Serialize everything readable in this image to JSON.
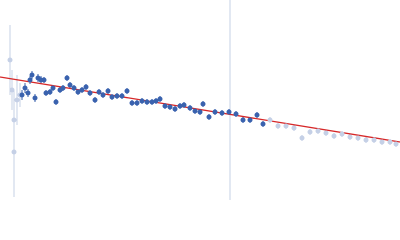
{
  "chart_data": {
    "type": "scatter",
    "xlim": [
      0,
      400
    ],
    "ylim": [
      0,
      200
    ],
    "series": [
      {
        "color": "#c5d0e6",
        "x": [
          10,
          12,
          14,
          14,
          17,
          20
        ],
        "values": [
          140,
          110,
          80,
          48,
          100,
          105
        ],
        "errors": [
          35,
          20,
          30,
          45,
          25,
          12
        ]
      },
      {
        "color": "#3a62ae",
        "x": [
          22,
          25,
          28,
          30,
          32,
          35,
          38,
          41,
          44,
          46,
          50,
          53,
          56,
          60,
          63,
          67,
          70,
          74,
          78,
          82,
          86,
          90,
          95,
          99,
          103,
          108,
          112,
          117,
          122,
          127,
          132,
          137,
          142,
          147,
          152,
          156,
          160,
          165,
          170,
          175,
          180,
          184,
          190,
          195,
          200,
          203,
          209,
          215,
          222,
          229,
          236,
          243,
          250,
          257,
          263
        ],
        "values": [
          105,
          112,
          107,
          120,
          125,
          102,
          122,
          120,
          120,
          107,
          108,
          112,
          98,
          110,
          112,
          122,
          115,
          112,
          108,
          110,
          113,
          107,
          100,
          108,
          105,
          109,
          103,
          104,
          104,
          109,
          97,
          97,
          99,
          98,
          98,
          99,
          101,
          94,
          93,
          91,
          94,
          95,
          92,
          89,
          88,
          96,
          83,
          88,
          87,
          88,
          86,
          80,
          80,
          85,
          76
        ],
        "errors": [
          5,
          5,
          4,
          4,
          4,
          4,
          4,
          4,
          3,
          3,
          3,
          3,
          3,
          3,
          3,
          3,
          3,
          3,
          3,
          3,
          3,
          3,
          3,
          3,
          3,
          3,
          3,
          3,
          3,
          3,
          3,
          3,
          3,
          3,
          3,
          3,
          3,
          3,
          3,
          3,
          3,
          3,
          3,
          3,
          3,
          3,
          3,
          3,
          3,
          3,
          3,
          3,
          3,
          3,
          3
        ]
      },
      {
        "color": "#c5d0e6",
        "x": [
          270,
          278,
          286,
          294,
          302,
          310,
          318,
          326,
          334,
          342,
          350,
          358,
          366,
          374,
          382,
          390,
          396
        ],
        "values": [
          80,
          74,
          74,
          72,
          62,
          68,
          69,
          67,
          64,
          66,
          63,
          62,
          60,
          60,
          58,
          58,
          56
        ],
        "errors": [
          3,
          3,
          3,
          3,
          3,
          3,
          3,
          3,
          3,
          3,
          3,
          3,
          3,
          3,
          3,
          3,
          3
        ]
      }
    ],
    "fit": {
      "color": "#d62728",
      "x": [
        0,
        400
      ],
      "values": [
        123,
        58
      ]
    },
    "vline": {
      "color": "#c5d0e6",
      "x": 230
    }
  }
}
